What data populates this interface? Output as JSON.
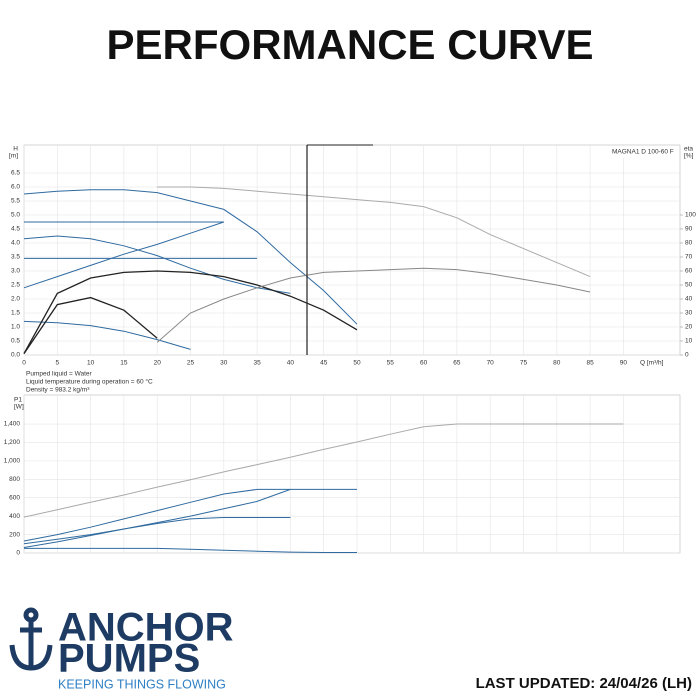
{
  "header": {
    "title": "PERFORMANCE CURVE"
  },
  "chart_data": [
    {
      "type": "line",
      "model": "MAGNA1 D 100-60 F",
      "ylabel": "H",
      "yunit": "[m]",
      "y2label": "eta",
      "y2unit": "[%]",
      "xlabel": "Q [m³/h]",
      "notes": [
        "Pumped liquid = Water",
        "Liquid temperature during operation = 60 °C",
        "Density = 983.2 kg/m³"
      ],
      "x": [
        0,
        5,
        10,
        15,
        20,
        25,
        30,
        35,
        40,
        45,
        50,
        55,
        60,
        65,
        70,
        75,
        80,
        85,
        90
      ],
      "xlim": [
        0,
        98.5
      ],
      "xticks": [
        0,
        5,
        10,
        15,
        20,
        25,
        30,
        35,
        40,
        45,
        50,
        55,
        60,
        65,
        70,
        75,
        80,
        85,
        90
      ],
      "ylim": [
        0,
        7.5
      ],
      "yticks": [
        {
          "value": 0,
          "label": "0.0"
        },
        0.5,
        {
          "value": 1,
          "label": "1.0"
        },
        1.5,
        {
          "value": 2,
          "label": "2.0"
        },
        2.5,
        {
          "value": 3,
          "label": "3.0"
        },
        3.5,
        {
          "value": 4,
          "label": "4.0"
        },
        4.5,
        {
          "value": 5,
          "label": "5.0"
        },
        5.5,
        {
          "value": 6,
          "label": "6.0"
        },
        6.5
      ],
      "y2lim": [
        0,
        150
      ],
      "y2ticks": [
        0,
        10,
        20,
        30,
        40,
        50,
        60,
        70,
        80,
        90,
        100
      ],
      "grid": true,
      "series": [
        {
          "color": "#2f6aa0",
          "values": [
            5.75,
            5.85,
            5.9,
            5.9,
            5.8,
            5.5,
            5.2,
            4.4,
            3.3,
            2.3,
            1.1,
            null,
            null,
            null,
            null,
            null,
            null,
            null,
            null
          ]
        },
        {
          "color": "#2f6aa0",
          "values": [
            4.15,
            4.25,
            4.15,
            3.9,
            3.55,
            3.1,
            2.7,
            2.4,
            2.2,
            null,
            null,
            null,
            null,
            null,
            null,
            null,
            null,
            null,
            null
          ]
        },
        {
          "color": "#2f6aa0",
          "values": [
            4.75,
            4.75,
            4.75,
            4.75,
            4.75,
            4.75,
            4.75,
            null,
            null,
            null,
            null,
            null,
            null,
            null,
            null,
            null,
            null,
            null,
            null
          ]
        },
        {
          "color": "#2f6aa0",
          "values": [
            3.45,
            3.45,
            3.45,
            3.45,
            3.45,
            3.45,
            3.45,
            3.45,
            null,
            null,
            null,
            null,
            null,
            null,
            null,
            null,
            null,
            null,
            null
          ]
        },
        {
          "color": "#2f6aa0",
          "values": [
            2.4,
            2.8,
            3.2,
            3.6,
            3.95,
            4.35,
            4.75,
            null,
            null,
            null,
            null,
            null,
            null,
            null,
            null,
            null,
            null,
            null,
            null
          ]
        },
        {
          "color": "#2f6aa0",
          "values": [
            1.2,
            1.15,
            1.05,
            0.85,
            0.55,
            0.2,
            null,
            null,
            null,
            null,
            null,
            null,
            null,
            null,
            null,
            null,
            null,
            null,
            null
          ]
        },
        {
          "color": "#222222",
          "values": [
            0.05,
            2.2,
            2.75,
            2.95,
            3.0,
            2.95,
            2.8,
            2.5,
            2.1,
            1.6,
            0.9,
            null,
            null,
            null,
            null,
            null,
            null,
            null,
            null
          ]
        },
        {
          "color": "#222222",
          "values": [
            0.05,
            1.8,
            2.05,
            1.6,
            0.6,
            null,
            null,
            null,
            null,
            null,
            null,
            null,
            null,
            null,
            null,
            null,
            null,
            null,
            null
          ]
        },
        {
          "color": "#aaaaaa",
          "values": [
            null,
            null,
            null,
            null,
            6.0,
            6.0,
            5.95,
            5.85,
            5.75,
            5.65,
            5.55,
            5.45,
            5.3,
            4.9,
            4.3,
            3.8,
            3.3,
            2.8,
            null
          ]
        },
        {
          "color": "#888888",
          "axis": "y2",
          "values": [
            null,
            null,
            null,
            null,
            9,
            30,
            40,
            48,
            55,
            59,
            60,
            61,
            62,
            61,
            58,
            54,
            50,
            45,
            null
          ]
        }
      ]
    },
    {
      "type": "line",
      "ylabel": "P1",
      "yunit": "[W]",
      "x": [
        0,
        5,
        10,
        15,
        20,
        25,
        30,
        35,
        40,
        45,
        50,
        55,
        60,
        65,
        70,
        75,
        80,
        85,
        90
      ],
      "xlim": [
        0,
        98.5
      ],
      "ylim": [
        0,
        1715
      ],
      "yticks": [
        0,
        200,
        400,
        600,
        800,
        {
          "value": 1000,
          "label": "1,000"
        },
        {
          "value": 1200,
          "label": "1,200"
        },
        {
          "value": 1400,
          "label": "1,400"
        }
      ],
      "grid": true,
      "series": [
        {
          "color": "#aaaaaa",
          "values": [
            390,
            470,
            550,
            630,
            715,
            795,
            880,
            960,
            1040,
            1125,
            1205,
            1290,
            1370,
            1400,
            1400,
            1400,
            1400,
            1400,
            1400
          ]
        },
        {
          "color": "#2f6aa0",
          "values": [
            130,
            200,
            280,
            370,
            460,
            550,
            640,
            690,
            690,
            690,
            690,
            null,
            null,
            null,
            null,
            null,
            null,
            null,
            null
          ]
        },
        {
          "color": "#2f6aa0",
          "values": [
            60,
            120,
            190,
            260,
            330,
            400,
            480,
            560,
            690,
            null,
            null,
            null,
            null,
            null,
            null,
            null,
            null,
            null,
            null
          ]
        },
        {
          "color": "#2f6aa0",
          "values": [
            100,
            150,
            200,
            260,
            320,
            370,
            385,
            385,
            385,
            null,
            null,
            null,
            null,
            null,
            null,
            null,
            null,
            null,
            null
          ]
        },
        {
          "color": "#2f6aa0",
          "values": [
            50,
            50,
            50,
            50,
            50,
            40,
            30,
            20,
            10,
            5,
            5,
            null,
            null,
            null,
            null,
            null,
            null,
            null,
            null
          ]
        }
      ]
    }
  ],
  "footer": {
    "brand1": "ANCHOR",
    "brand2": "PUMPS",
    "tagline": "KEEPING THINGS FLOWING",
    "updated": "LAST UPDATED: 24/04/26 (LH)"
  }
}
